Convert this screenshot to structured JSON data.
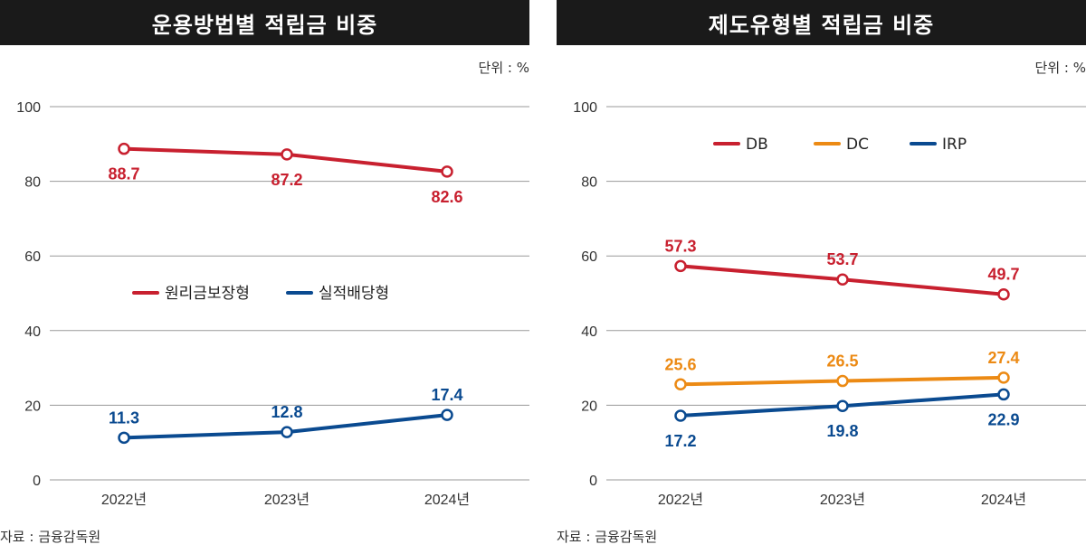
{
  "chart_data": [
    {
      "type": "line",
      "title": "운용방법별 적립금 비중",
      "unit": "단위 : %",
      "source": "자료 : 금융감독원",
      "categories": [
        "2022년",
        "2023년",
        "2024년"
      ],
      "ylim": [
        0,
        100
      ],
      "yticks": [
        0,
        20,
        40,
        60,
        80,
        100
      ],
      "grid": true,
      "series": [
        {
          "name": "원리금보장형",
          "color": "#c8202f",
          "values": [
            88.7,
            87.2,
            82.6
          ],
          "labels": [
            "88.7",
            "87.2",
            "82.6"
          ],
          "label_position": [
            "below",
            "below",
            "below"
          ]
        },
        {
          "name": "실적배당형",
          "color": "#0a4a90",
          "values": [
            11.3,
            12.8,
            17.4
          ],
          "labels": [
            "11.3",
            "12.8",
            "17.4"
          ],
          "label_position": [
            "above",
            "above",
            "above"
          ]
        }
      ]
    },
    {
      "type": "line",
      "title": "제도유형별 적립금 비중",
      "unit": "단위 : %",
      "source": "자료 : 금융감독원",
      "categories": [
        "2022년",
        "2023년",
        "2024년"
      ],
      "ylim": [
        0,
        100
      ],
      "yticks": [
        0,
        20,
        40,
        60,
        80,
        100
      ],
      "grid": true,
      "series": [
        {
          "name": "DB",
          "color": "#c8202f",
          "values": [
            57.3,
            53.7,
            49.7
          ],
          "labels": [
            "57.3",
            "53.7",
            "49.7"
          ],
          "label_position": [
            "above",
            "above",
            "above"
          ]
        },
        {
          "name": "DC",
          "color": "#ec8a14",
          "values": [
            25.6,
            26.5,
            27.4
          ],
          "labels": [
            "25.6",
            "26.5",
            "27.4"
          ],
          "label_position": [
            "above",
            "above",
            "above"
          ]
        },
        {
          "name": "IRP",
          "color": "#0a4a90",
          "values": [
            17.2,
            19.8,
            22.9
          ],
          "labels": [
            "17.2",
            "19.8",
            "22.9"
          ],
          "label_position": [
            "below",
            "below",
            "below"
          ]
        }
      ]
    }
  ]
}
